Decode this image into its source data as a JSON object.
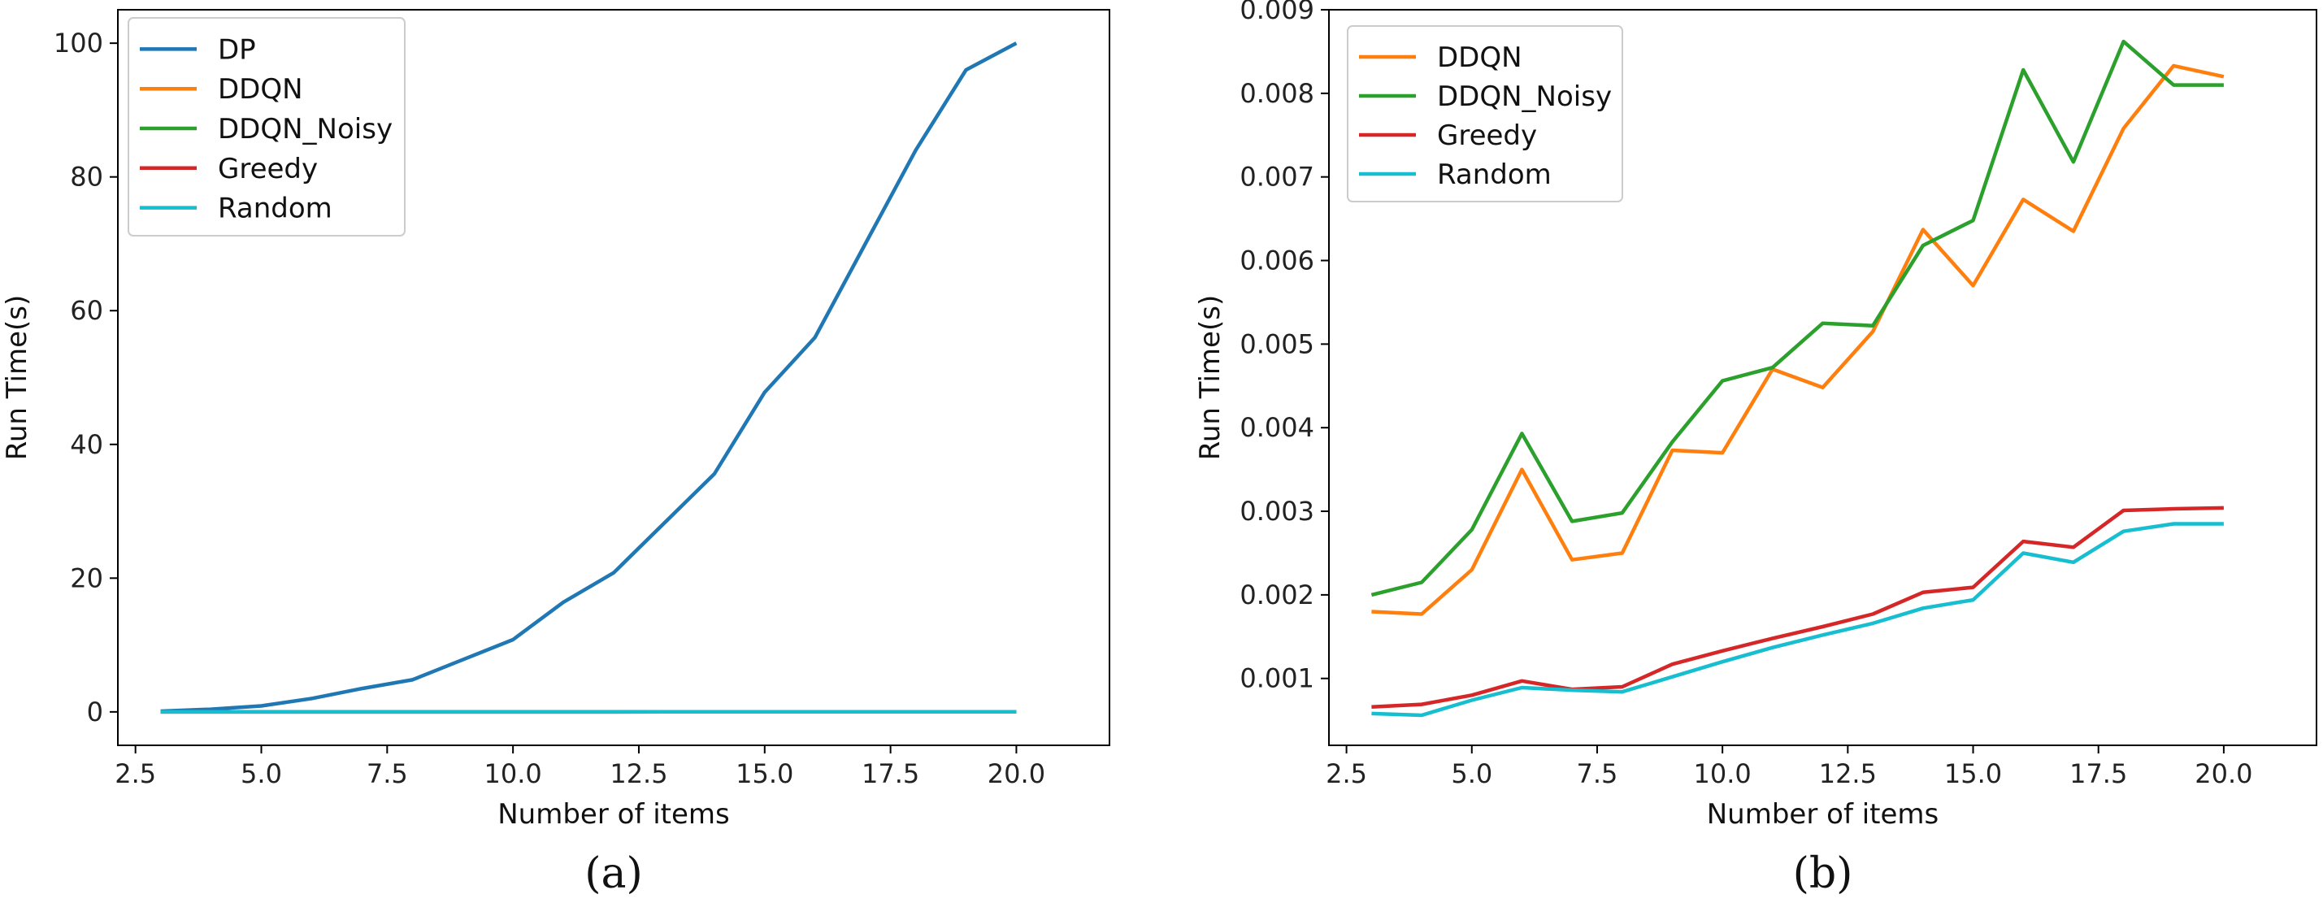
{
  "chart_data": [
    {
      "id": "a",
      "type": "line",
      "caption": "(a)",
      "xlabel": "Number of items",
      "ylabel": "Run Time(s)",
      "xlim": [
        2.15,
        21.85
      ],
      "ylim": [
        -5,
        105
      ],
      "xticks": [
        2.5,
        5.0,
        7.5,
        10.0,
        12.5,
        15.0,
        17.5,
        20.0
      ],
      "xtick_labels": [
        "2.5",
        "5.0",
        "7.5",
        "10.0",
        "12.5",
        "15.0",
        "17.5",
        "20.0"
      ],
      "yticks": [
        0,
        20,
        40,
        60,
        80,
        100
      ],
      "ytick_labels": [
        "0",
        "20",
        "40",
        "60",
        "80",
        "100"
      ],
      "legend": "top-left",
      "x": [
        3,
        4,
        5,
        6,
        7,
        8,
        9,
        10,
        11,
        12,
        13,
        14,
        15,
        16,
        17,
        18,
        19,
        20
      ],
      "series": [
        {
          "name": "DP",
          "color": "#1f77b4",
          "values": [
            0.1,
            0.4,
            0.9,
            2.0,
            3.5,
            4.8,
            7.8,
            10.8,
            16.4,
            20.8,
            28.2,
            35.6,
            47.8,
            56.0,
            70.0,
            84.0,
            96.0,
            100.0
          ]
        },
        {
          "name": "DDQN",
          "color": "#ff7f0e",
          "values": [
            0.002,
            0.002,
            0.002,
            0.003,
            0.002,
            0.002,
            0.004,
            0.004,
            0.005,
            0.004,
            0.005,
            0.006,
            0.006,
            0.007,
            0.006,
            0.007,
            0.008,
            0.008
          ]
        },
        {
          "name": "DDQN_Noisy",
          "color": "#2ca02c",
          "values": [
            0.002,
            0.002,
            0.003,
            0.004,
            0.003,
            0.003,
            0.004,
            0.005,
            0.005,
            0.005,
            0.005,
            0.006,
            0.006,
            0.008,
            0.007,
            0.008,
            0.009,
            0.008
          ]
        },
        {
          "name": "Greedy",
          "color": "#d62728",
          "values": [
            0.0007,
            0.0007,
            0.0008,
            0.001,
            0.0009,
            0.0009,
            0.0012,
            0.0013,
            0.0015,
            0.0016,
            0.0018,
            0.002,
            0.0021,
            0.0026,
            0.0026,
            0.003,
            0.003,
            0.003
          ]
        },
        {
          "name": "Random",
          "color": "#17becf",
          "values": [
            0.0006,
            0.0006,
            0.0007,
            0.0009,
            0.0009,
            0.0008,
            0.001,
            0.0012,
            0.0014,
            0.0015,
            0.0017,
            0.0018,
            0.0019,
            0.0025,
            0.0024,
            0.0028,
            0.0028,
            0.0029
          ]
        }
      ]
    },
    {
      "id": "b",
      "type": "line",
      "caption": "(b)",
      "xlabel": "Number of items",
      "ylabel": "Run Time(s)",
      "xlim": [
        2.15,
        21.85
      ],
      "ylim": [
        0.0002,
        0.009
      ],
      "xticks": [
        2.5,
        5.0,
        7.5,
        10.0,
        12.5,
        15.0,
        17.5,
        20.0
      ],
      "xtick_labels": [
        "2.5",
        "5.0",
        "7.5",
        "10.0",
        "12.5",
        "15.0",
        "17.5",
        "20.0"
      ],
      "yticks": [
        0.001,
        0.002,
        0.003,
        0.004,
        0.005,
        0.006,
        0.007,
        0.008,
        0.009
      ],
      "ytick_labels": [
        "0.001",
        "0.002",
        "0.003",
        "0.004",
        "0.005",
        "0.006",
        "0.007",
        "0.008",
        "0.009"
      ],
      "legend": "top-left",
      "x": [
        3,
        4,
        5,
        6,
        7,
        8,
        9,
        10,
        11,
        12,
        13,
        14,
        15,
        16,
        17,
        18,
        19,
        20
      ],
      "series": [
        {
          "name": "DDQN",
          "color": "#ff7f0e",
          "values": [
            0.0018,
            0.00177,
            0.0023,
            0.0035,
            0.00242,
            0.0025,
            0.00373,
            0.0037,
            0.0047,
            0.00448,
            0.00515,
            0.00637,
            0.0057,
            0.00673,
            0.00635,
            0.00758,
            0.00833,
            0.0082
          ]
        },
        {
          "name": "DDQN_Noisy",
          "color": "#2ca02c",
          "values": [
            0.002,
            0.00215,
            0.00278,
            0.00393,
            0.00288,
            0.00298,
            0.00383,
            0.00456,
            0.00472,
            0.00525,
            0.00522,
            0.00618,
            0.00648,
            0.00828,
            0.00718,
            0.00862,
            0.0081,
            0.0081
          ]
        },
        {
          "name": "Greedy",
          "color": "#d62728",
          "values": [
            0.00066,
            0.00069,
            0.0008,
            0.00097,
            0.00087,
            0.0009,
            0.00117,
            0.00133,
            0.00148,
            0.00162,
            0.00177,
            0.00203,
            0.00209,
            0.00264,
            0.00257,
            0.00301,
            0.00303,
            0.00304
          ]
        },
        {
          "name": "Random",
          "color": "#17becf",
          "values": [
            0.00058,
            0.00056,
            0.00074,
            0.00089,
            0.00086,
            0.00084,
            0.00102,
            0.0012,
            0.00137,
            0.00152,
            0.00166,
            0.00184,
            0.00194,
            0.0025,
            0.00239,
            0.00276,
            0.00285,
            0.00285
          ]
        }
      ]
    }
  ]
}
